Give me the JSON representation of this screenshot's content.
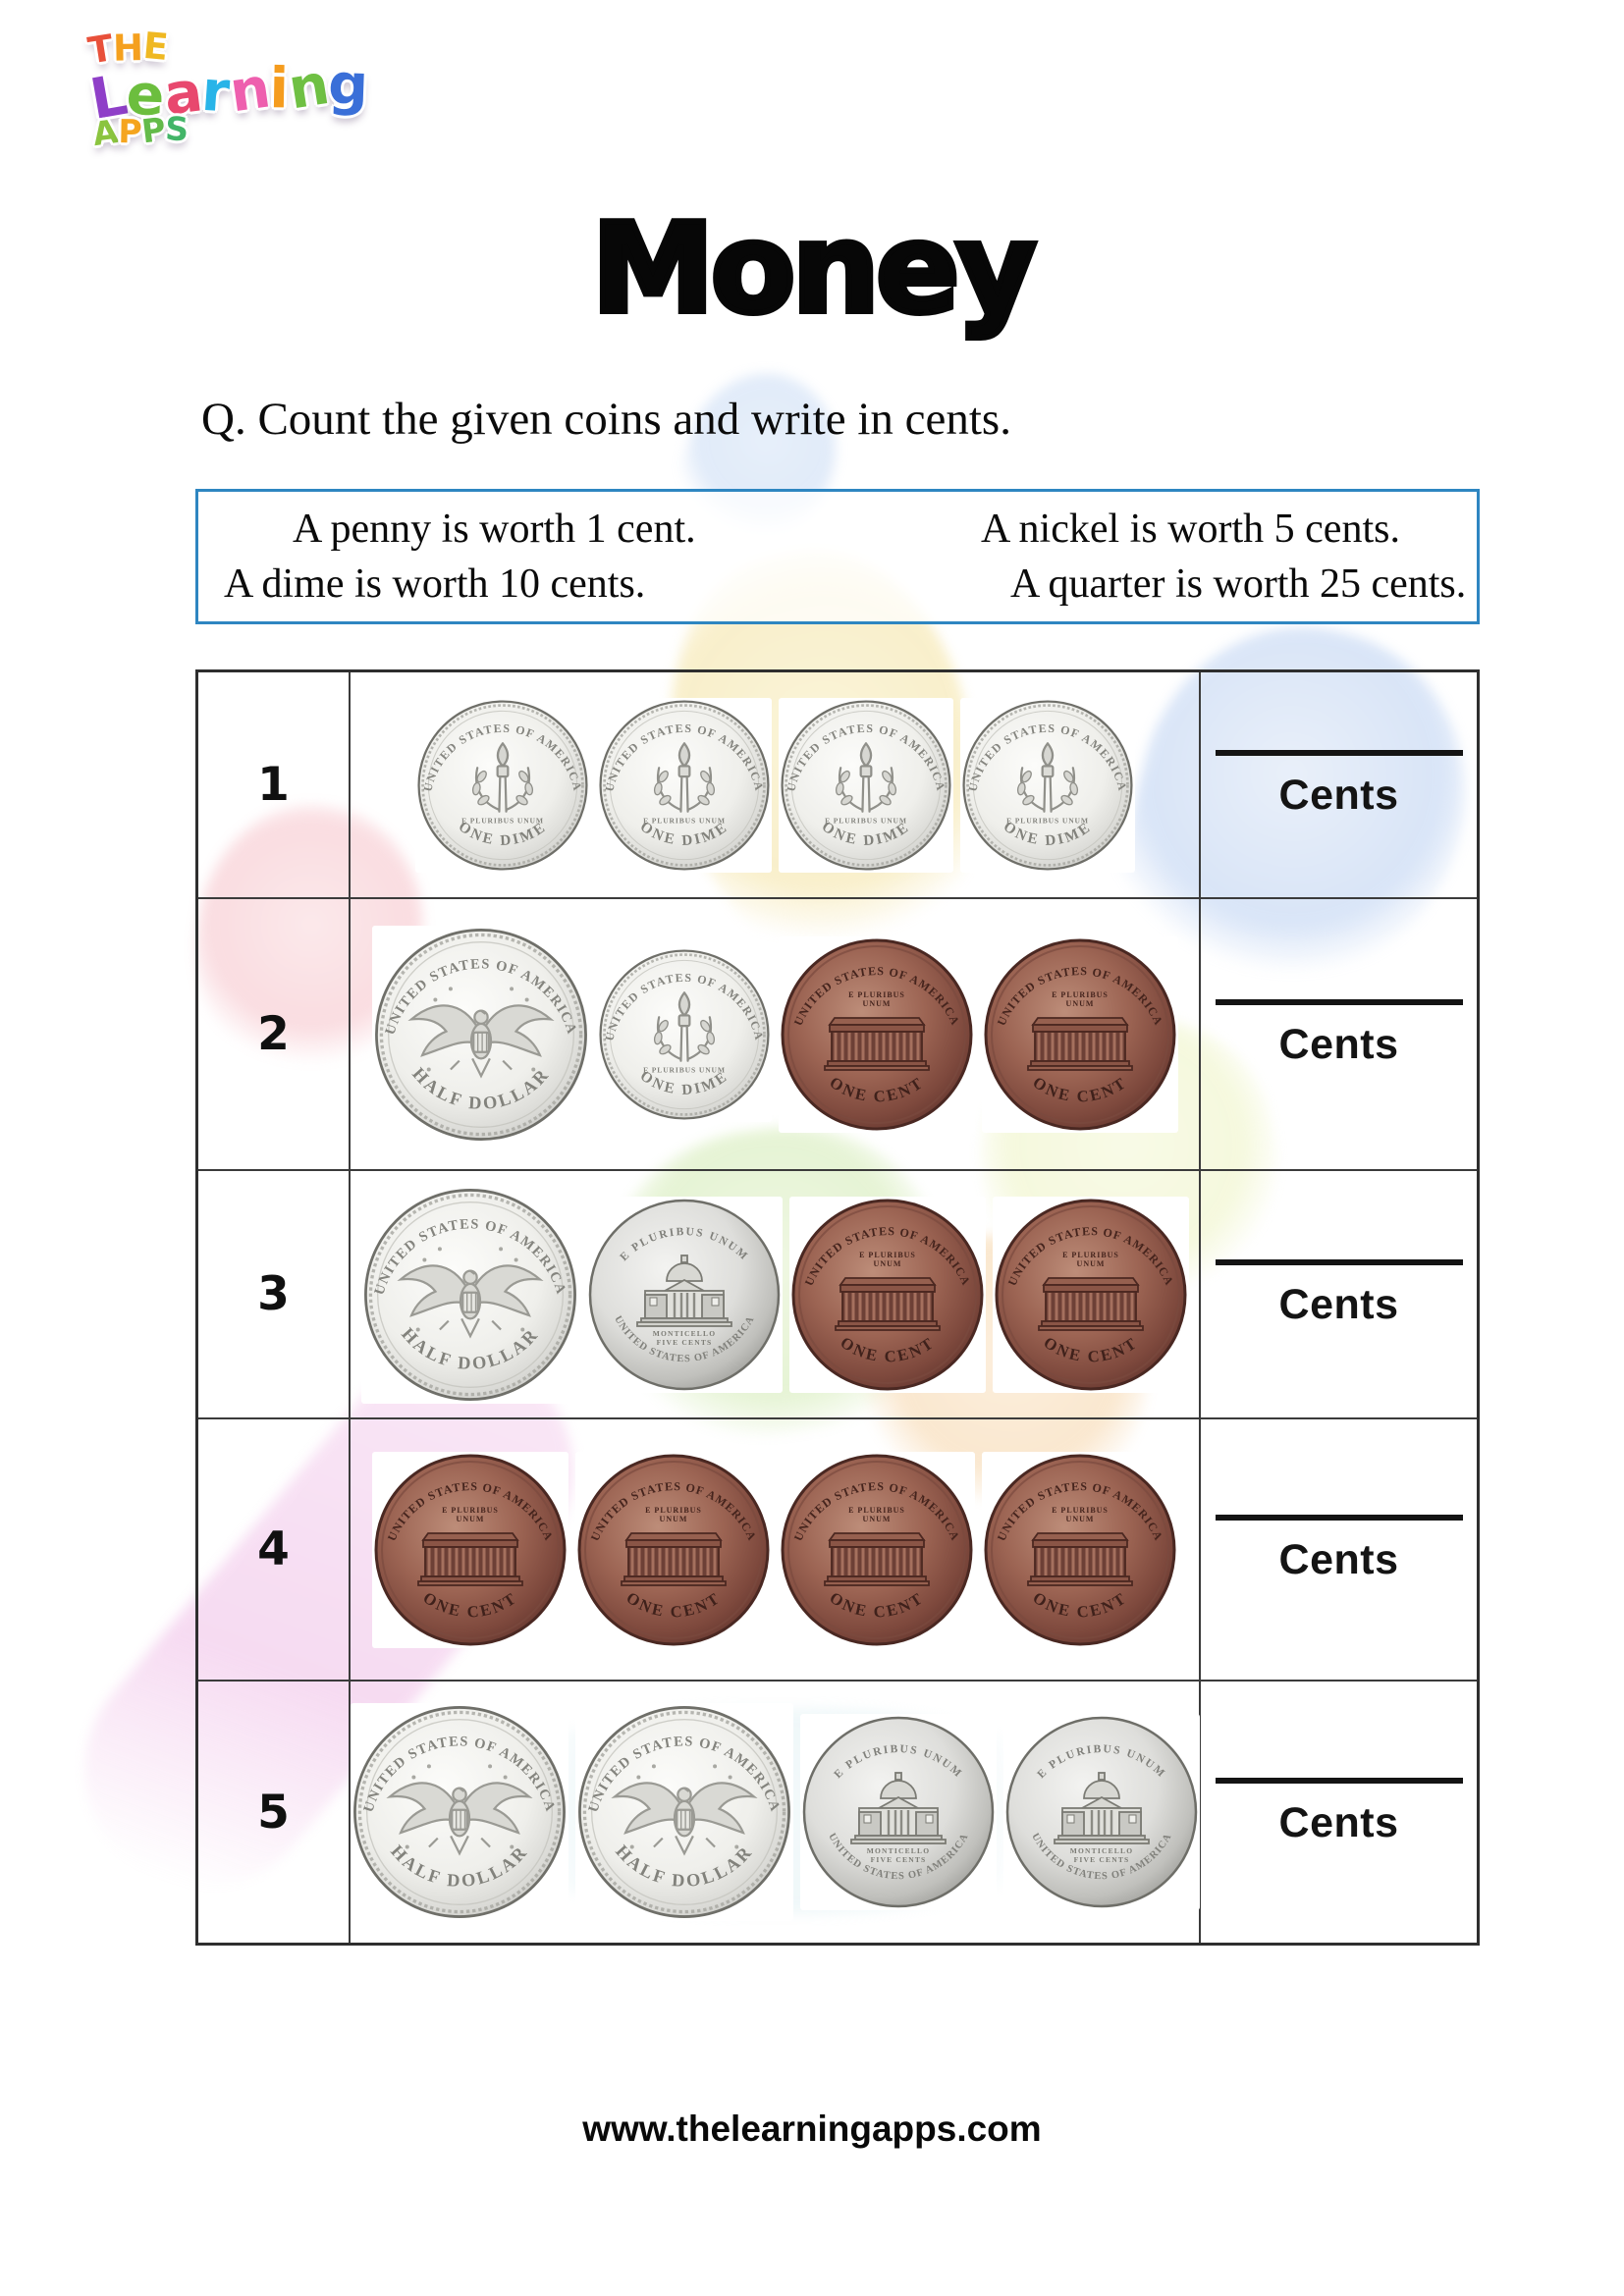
{
  "logo": {
    "the": "THE",
    "learning": "Learning",
    "apps": "APPS",
    "the_colors": [
      "#e8503a",
      "#f5a01e",
      "#efb822"
    ],
    "learning_colors": [
      "#8f3fc8",
      "#6cbe3e",
      "#e8486e",
      "#28b4e8",
      "#ee5fae",
      "#f59c1e",
      "#6fc043",
      "#3a6fd8"
    ],
    "apps_colors": [
      "#8bc43f",
      "#f5a51f",
      "#64bb4a",
      "#43b568"
    ]
  },
  "title": "Money",
  "question": "Q. Count the given coins and write in cents.",
  "info_box": {
    "border_color": "#2e86c1",
    "items": [
      "A penny is worth 1 cent.",
      "A nickel is worth 5 cents.",
      "A dime is worth 10 cents.",
      "A quarter is worth 25 cents."
    ]
  },
  "worksheet_table": {
    "answer_label": "Cents",
    "rows": [
      {
        "number": "1",
        "coins": [
          "dime",
          "dime",
          "dime",
          "dime"
        ]
      },
      {
        "number": "2",
        "coins": [
          "half_dollar",
          "dime",
          "penny",
          "penny"
        ]
      },
      {
        "number": "3",
        "coins": [
          "half_dollar",
          "nickel",
          "penny",
          "penny"
        ]
      },
      {
        "number": "4",
        "coins": [
          "penny",
          "penny",
          "penny",
          "penny"
        ]
      },
      {
        "number": "5",
        "coins": [
          "half_dollar",
          "half_dollar",
          "nickel",
          "nickel"
        ]
      }
    ]
  },
  "coins": {
    "dime": {
      "top": "UNITED STATES OF AMERICA",
      "motto": "E PLURIBUS UNUM",
      "bottom": "ONE DIME"
    },
    "half_dollar": {
      "top": "UNITED STATES OF AMERICA",
      "bottom": "HALF DOLLAR"
    },
    "penny": {
      "top": "UNITED STATES OF AMERICA",
      "motto_line1": "E PLURIBUS",
      "motto_line2": "UNUM",
      "bottom": "ONE CENT"
    },
    "nickel": {
      "top": "E PLURIBUS UNUM",
      "label": "MONTICELLO",
      "sub_label": "FIVE CENTS",
      "bottom": "UNITED STATES OF AMERICA"
    }
  },
  "footer": "www.thelearningapps.com",
  "colors": {
    "penny_copper": "#9c6453",
    "silver": "#ececea",
    "table_border": "#2e2e2e",
    "answer_line": "#141414"
  }
}
